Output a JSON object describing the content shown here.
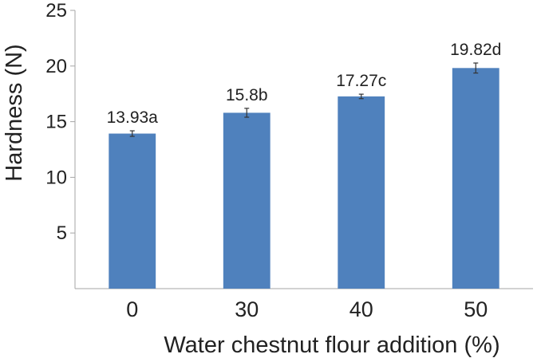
{
  "chart_data": {
    "type": "bar",
    "title": "",
    "xlabel": "Water chestnut flour addition (%)",
    "ylabel": "Hardness (N)",
    "categories": [
      "0",
      "30",
      "40",
      "50"
    ],
    "values": [
      13.93,
      15.8,
      17.27,
      19.82
    ],
    "errors": [
      0.25,
      0.4,
      0.2,
      0.45
    ],
    "data_labels": [
      "13.93a",
      "15.8b",
      "17.27c",
      "19.82d"
    ],
    "ylim": [
      0,
      25
    ],
    "yticks": [
      "5",
      "10",
      "15",
      "20",
      "25"
    ],
    "grid": false,
    "legend": "none",
    "bar_color": "#4f81bd"
  }
}
